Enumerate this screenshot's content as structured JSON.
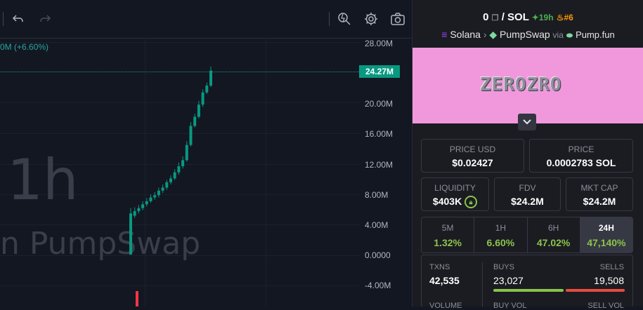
{
  "toolbar": {
    "icons": [
      "undo-icon",
      "redo-icon",
      "indicator-search-icon",
      "settings-icon",
      "screenshot-icon"
    ]
  },
  "chart": {
    "change_text": "0M (+6.60%)",
    "watermark_interval": "1h",
    "watermark_exchange": "n PumpSwap",
    "current_price_label": "24.27M",
    "y_axis_labels": [
      "28.00M",
      "24.00M",
      "20.00M",
      "16.00M",
      "12.00M",
      "8.00M",
      "4.00M",
      "0.0000",
      "-4.00M"
    ]
  },
  "chart_data": {
    "type": "candlestick",
    "title": "",
    "ylabel": "",
    "ylim": [
      -6000000,
      30000000
    ],
    "up_color": "#089981",
    "down_color": "#f23645",
    "current_value": 24270000,
    "candles": [
      {
        "o": 5500000,
        "h": 6200000,
        "l": 100000,
        "c": 100000,
        "dir": "down"
      },
      {
        "o": 5200000,
        "h": 6300000,
        "l": 4900000,
        "c": 5800000
      },
      {
        "o": 5800000,
        "h": 6600000,
        "l": 5500000,
        "c": 6200000
      },
      {
        "o": 6200000,
        "h": 7100000,
        "l": 5900000,
        "c": 6700000
      },
      {
        "o": 6700000,
        "h": 7500000,
        "l": 6400000,
        "c": 7100000
      },
      {
        "o": 7100000,
        "h": 8000000,
        "l": 6900000,
        "c": 7600000
      },
      {
        "o": 7600000,
        "h": 8300000,
        "l": 7300000,
        "c": 7900000
      },
      {
        "o": 7900000,
        "h": 8900000,
        "l": 7600000,
        "c": 8500000
      },
      {
        "o": 8500000,
        "h": 9300000,
        "l": 8200000,
        "c": 8900000
      },
      {
        "o": 8900000,
        "h": 9900000,
        "l": 8600000,
        "c": 9600000
      },
      {
        "o": 9600000,
        "h": 10500000,
        "l": 9300000,
        "c": 10100000
      },
      {
        "o": 10100000,
        "h": 11300000,
        "l": 9900000,
        "c": 10900000
      },
      {
        "o": 10900000,
        "h": 12200000,
        "l": 10600000,
        "c": 11700000
      },
      {
        "o": 11700000,
        "h": 13000000,
        "l": 11400000,
        "c": 12500000
      },
      {
        "o": 12500000,
        "h": 15000000,
        "l": 12300000,
        "c": 14500000
      },
      {
        "o": 14500000,
        "h": 17500000,
        "l": 14300000,
        "c": 17000000
      },
      {
        "o": 17000000,
        "h": 18600000,
        "l": 16800000,
        "c": 18200000
      },
      {
        "o": 18200000,
        "h": 20300000,
        "l": 18000000,
        "c": 19800000
      },
      {
        "o": 19800000,
        "h": 21800000,
        "l": 19500000,
        "c": 21400000
      },
      {
        "o": 21400000,
        "h": 22700000,
        "l": 21200000,
        "c": 22300000
      },
      {
        "o": 22300000,
        "h": 24800000,
        "l": 22100000,
        "c": 24270000
      }
    ]
  },
  "panel": {
    "pair_base": "0",
    "pair_sep": "/",
    "pair_quote": "SOL",
    "age": "19h",
    "rank": "#6",
    "chain": "Solana",
    "dex": "PumpSwap",
    "via": "via",
    "launchpad": "Pump.fun",
    "banner_text": "ZEROZRO",
    "price_usd_label": "PRICE USD",
    "price_usd": "$0.02427",
    "price_label": "PRICE",
    "price_sol": "0.0002783 SOL",
    "liquidity_label": "LIQUIDITY",
    "liquidity": "$403K",
    "fdv_label": "FDV",
    "fdv": "$24.2M",
    "mktcap_label": "MKT CAP",
    "mktcap": "$24.2M",
    "timeframes": [
      {
        "label": "5M",
        "value": "1.32%"
      },
      {
        "label": "1H",
        "value": "6.60%"
      },
      {
        "label": "6H",
        "value": "47.02%"
      },
      {
        "label": "24H",
        "value": "47,140%",
        "active": true
      }
    ],
    "txns_label": "TXNS",
    "txns": "42,535",
    "buys_label": "BUYS",
    "buys": "23,027",
    "sells_label": "SELLS",
    "sells": "19,508",
    "volume_label": "VOLUME",
    "buy_vol_label": "BUY VOL",
    "sell_vol_label": "SELL VOL"
  }
}
